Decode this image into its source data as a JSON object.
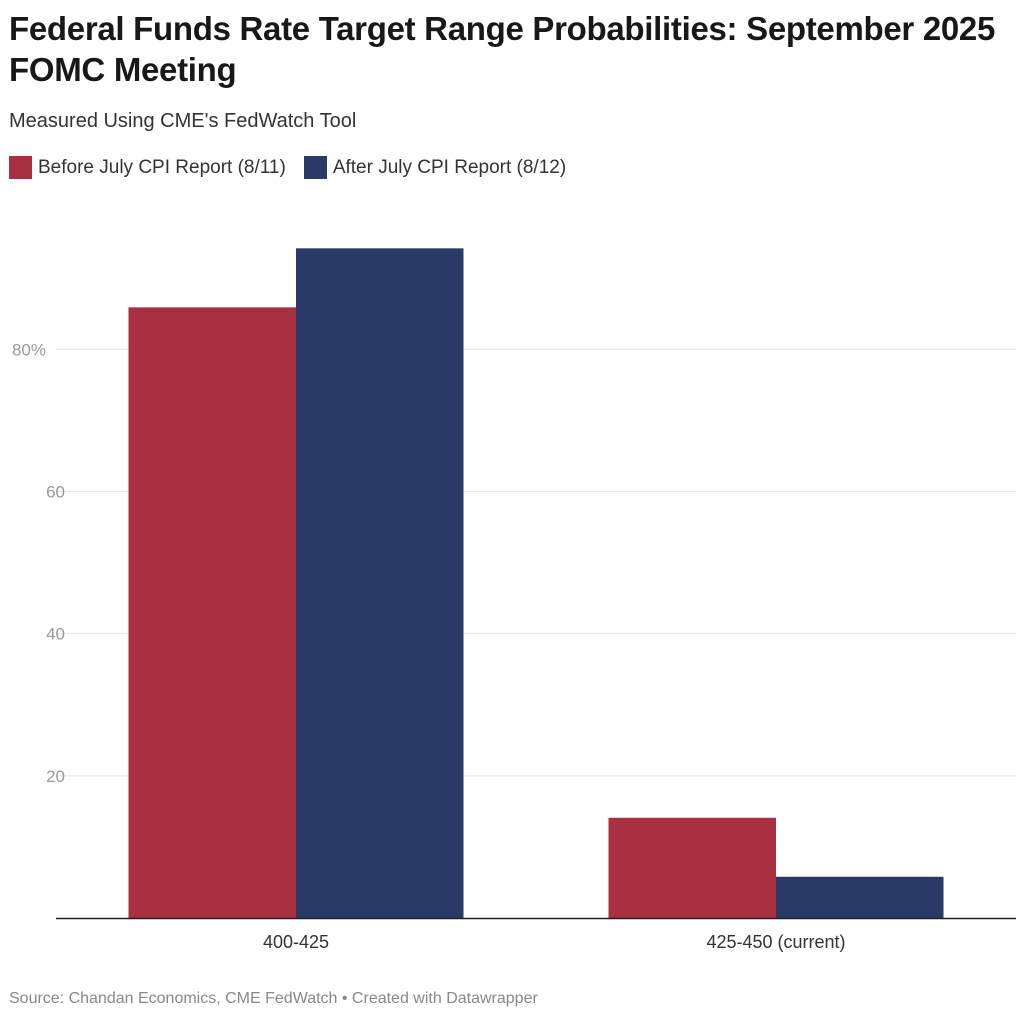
{
  "chart_data": {
    "type": "bar",
    "title": "Federal Funds Rate Target Range Probabilities: September 2025 FOMC Meeting",
    "subtitle": "Measured Using CME's FedWatch Tool",
    "categories": [
      "400-425",
      "425-450 (current)"
    ],
    "series": [
      {
        "name": "Before July CPI Report (8/11)",
        "color": "#a83040",
        "values": [
          85.9,
          14.1
        ]
      },
      {
        "name": "After July CPI Report (8/12)",
        "color": "#2a3a66",
        "values": [
          94.2,
          5.8
        ]
      }
    ],
    "ylim": [
      0,
      100
    ],
    "yticks": [
      20,
      40,
      60,
      80
    ],
    "ytick_labels": [
      "20",
      "40",
      "60",
      "80%"
    ],
    "xlabel": "",
    "ylabel": "",
    "grid": true,
    "legend": "top-left",
    "source": "Source: Chandan Economics, CME FedWatch • Created with Datawrapper"
  }
}
